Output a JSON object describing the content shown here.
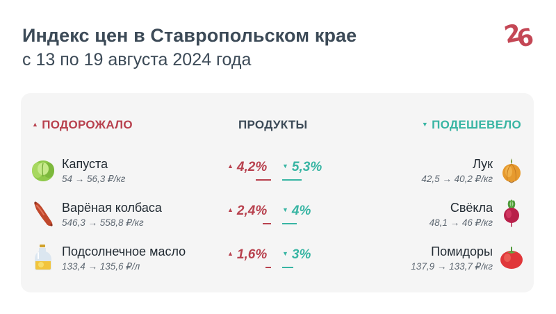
{
  "header": {
    "title": "Индекс цен в Ставропольском крае",
    "subtitle": "с 13 по 19 августа 2024 года",
    "logo": {
      "digit_first": "2",
      "digit_second": "6",
      "color": "#c44755"
    }
  },
  "table": {
    "columns": {
      "up": "ПОДОРОЖАЛО",
      "products": "ПРОДУКТЫ",
      "down": "ПОДЕШЕВЕЛО"
    },
    "up_arrow": "▲",
    "down_arrow": "▼",
    "colors": {
      "up": "#b8414e",
      "down": "#38b5a3"
    },
    "rows": [
      {
        "up_item": {
          "name": "Капуста",
          "price": "54 → 56,3 ₽/кг",
          "icon": "cabbage-icon",
          "change": "4,2%",
          "change_value": 4.2
        },
        "down_item": {
          "name": "Лук",
          "price": "42,5 → 40,2 ₽/кг",
          "icon": "onion-icon",
          "change": "5,3%",
          "change_value": 5.3
        }
      },
      {
        "up_item": {
          "name": "Варёная колбаса",
          "price": "546,3 → 558,8 ₽/кг",
          "icon": "sausage-icon",
          "change": "2,4%",
          "change_value": 2.4
        },
        "down_item": {
          "name": "Свёкла",
          "price": "48,1 → 46 ₽/кг",
          "icon": "beet-icon",
          "change": "4%",
          "change_value": 4
        }
      },
      {
        "up_item": {
          "name": "Подсолнечное масло",
          "price": "133,4 → 135,6 ₽/л",
          "icon": "oil-bottle-icon",
          "change": "1,6%",
          "change_value": 1.6
        },
        "down_item": {
          "name": "Помидоры",
          "price": "137,9 → 133,7 ₽/кг",
          "icon": "tomato-icon",
          "change": "3%",
          "change_value": 3
        }
      }
    ]
  }
}
